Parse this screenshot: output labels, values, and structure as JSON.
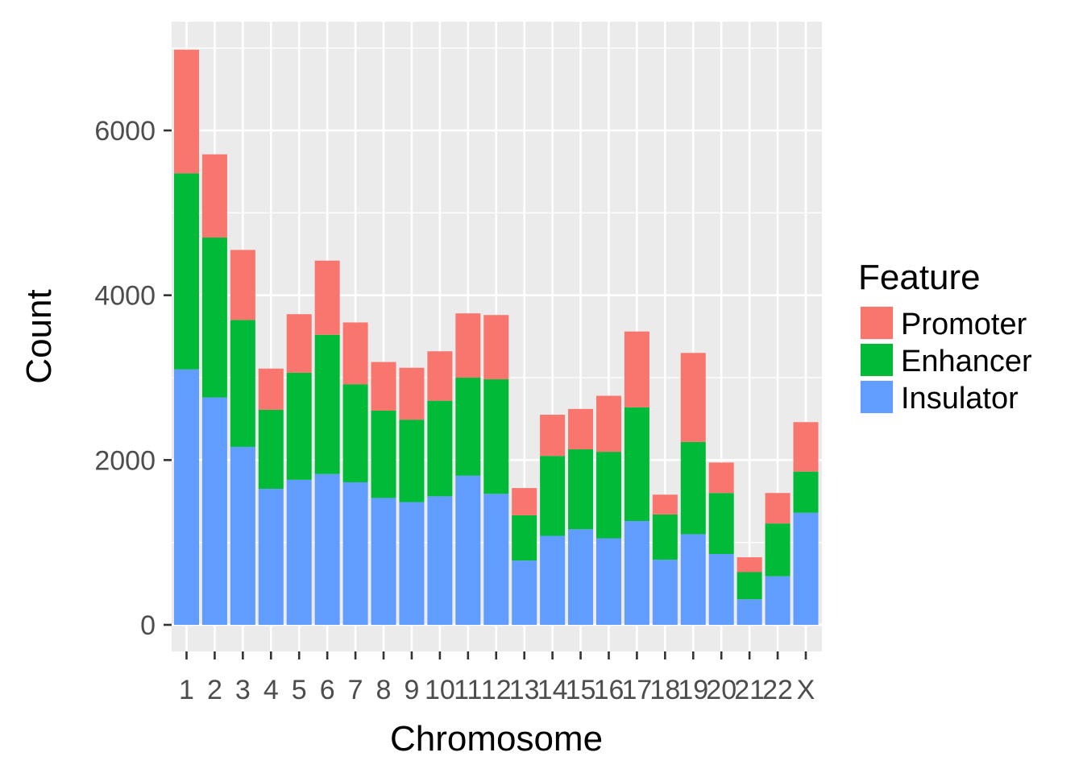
{
  "chart_data": {
    "type": "bar",
    "stacked": true,
    "xlabel": "Chromosome",
    "ylabel": "Count",
    "ylim": [
      0,
      7000
    ],
    "yticks": [
      0,
      2000,
      4000,
      6000
    ],
    "grid": true,
    "legend_position": "right",
    "legend_title": "Feature",
    "categories": [
      "1",
      "2",
      "3",
      "4",
      "5",
      "6",
      "7",
      "8",
      "9",
      "10",
      "11",
      "12",
      "13",
      "14",
      "15",
      "16",
      "17",
      "18",
      "19",
      "20",
      "21",
      "22",
      "X"
    ],
    "series": [
      {
        "name": "Insulator",
        "color": "#619CFF",
        "values": [
          3100,
          2760,
          2160,
          1650,
          1760,
          1830,
          1730,
          1540,
          1490,
          1560,
          1810,
          1590,
          780,
          1080,
          1160,
          1050,
          1260,
          790,
          1100,
          860,
          310,
          590,
          1360
        ]
      },
      {
        "name": "Enhancer",
        "color": "#00BA38",
        "values": [
          2380,
          1940,
          1540,
          960,
          1300,
          1690,
          1190,
          1060,
          1000,
          1160,
          1190,
          1390,
          550,
          970,
          970,
          1050,
          1380,
          550,
          1120,
          740,
          330,
          640,
          500
        ]
      },
      {
        "name": "Promoter",
        "color": "#F8766D",
        "values": [
          1500,
          1010,
          850,
          500,
          710,
          900,
          750,
          590,
          630,
          600,
          780,
          780,
          330,
          500,
          490,
          680,
          920,
          240,
          1080,
          370,
          180,
          370,
          600
        ]
      }
    ],
    "legend_order": [
      "Promoter",
      "Enhancer",
      "Insulator"
    ]
  }
}
